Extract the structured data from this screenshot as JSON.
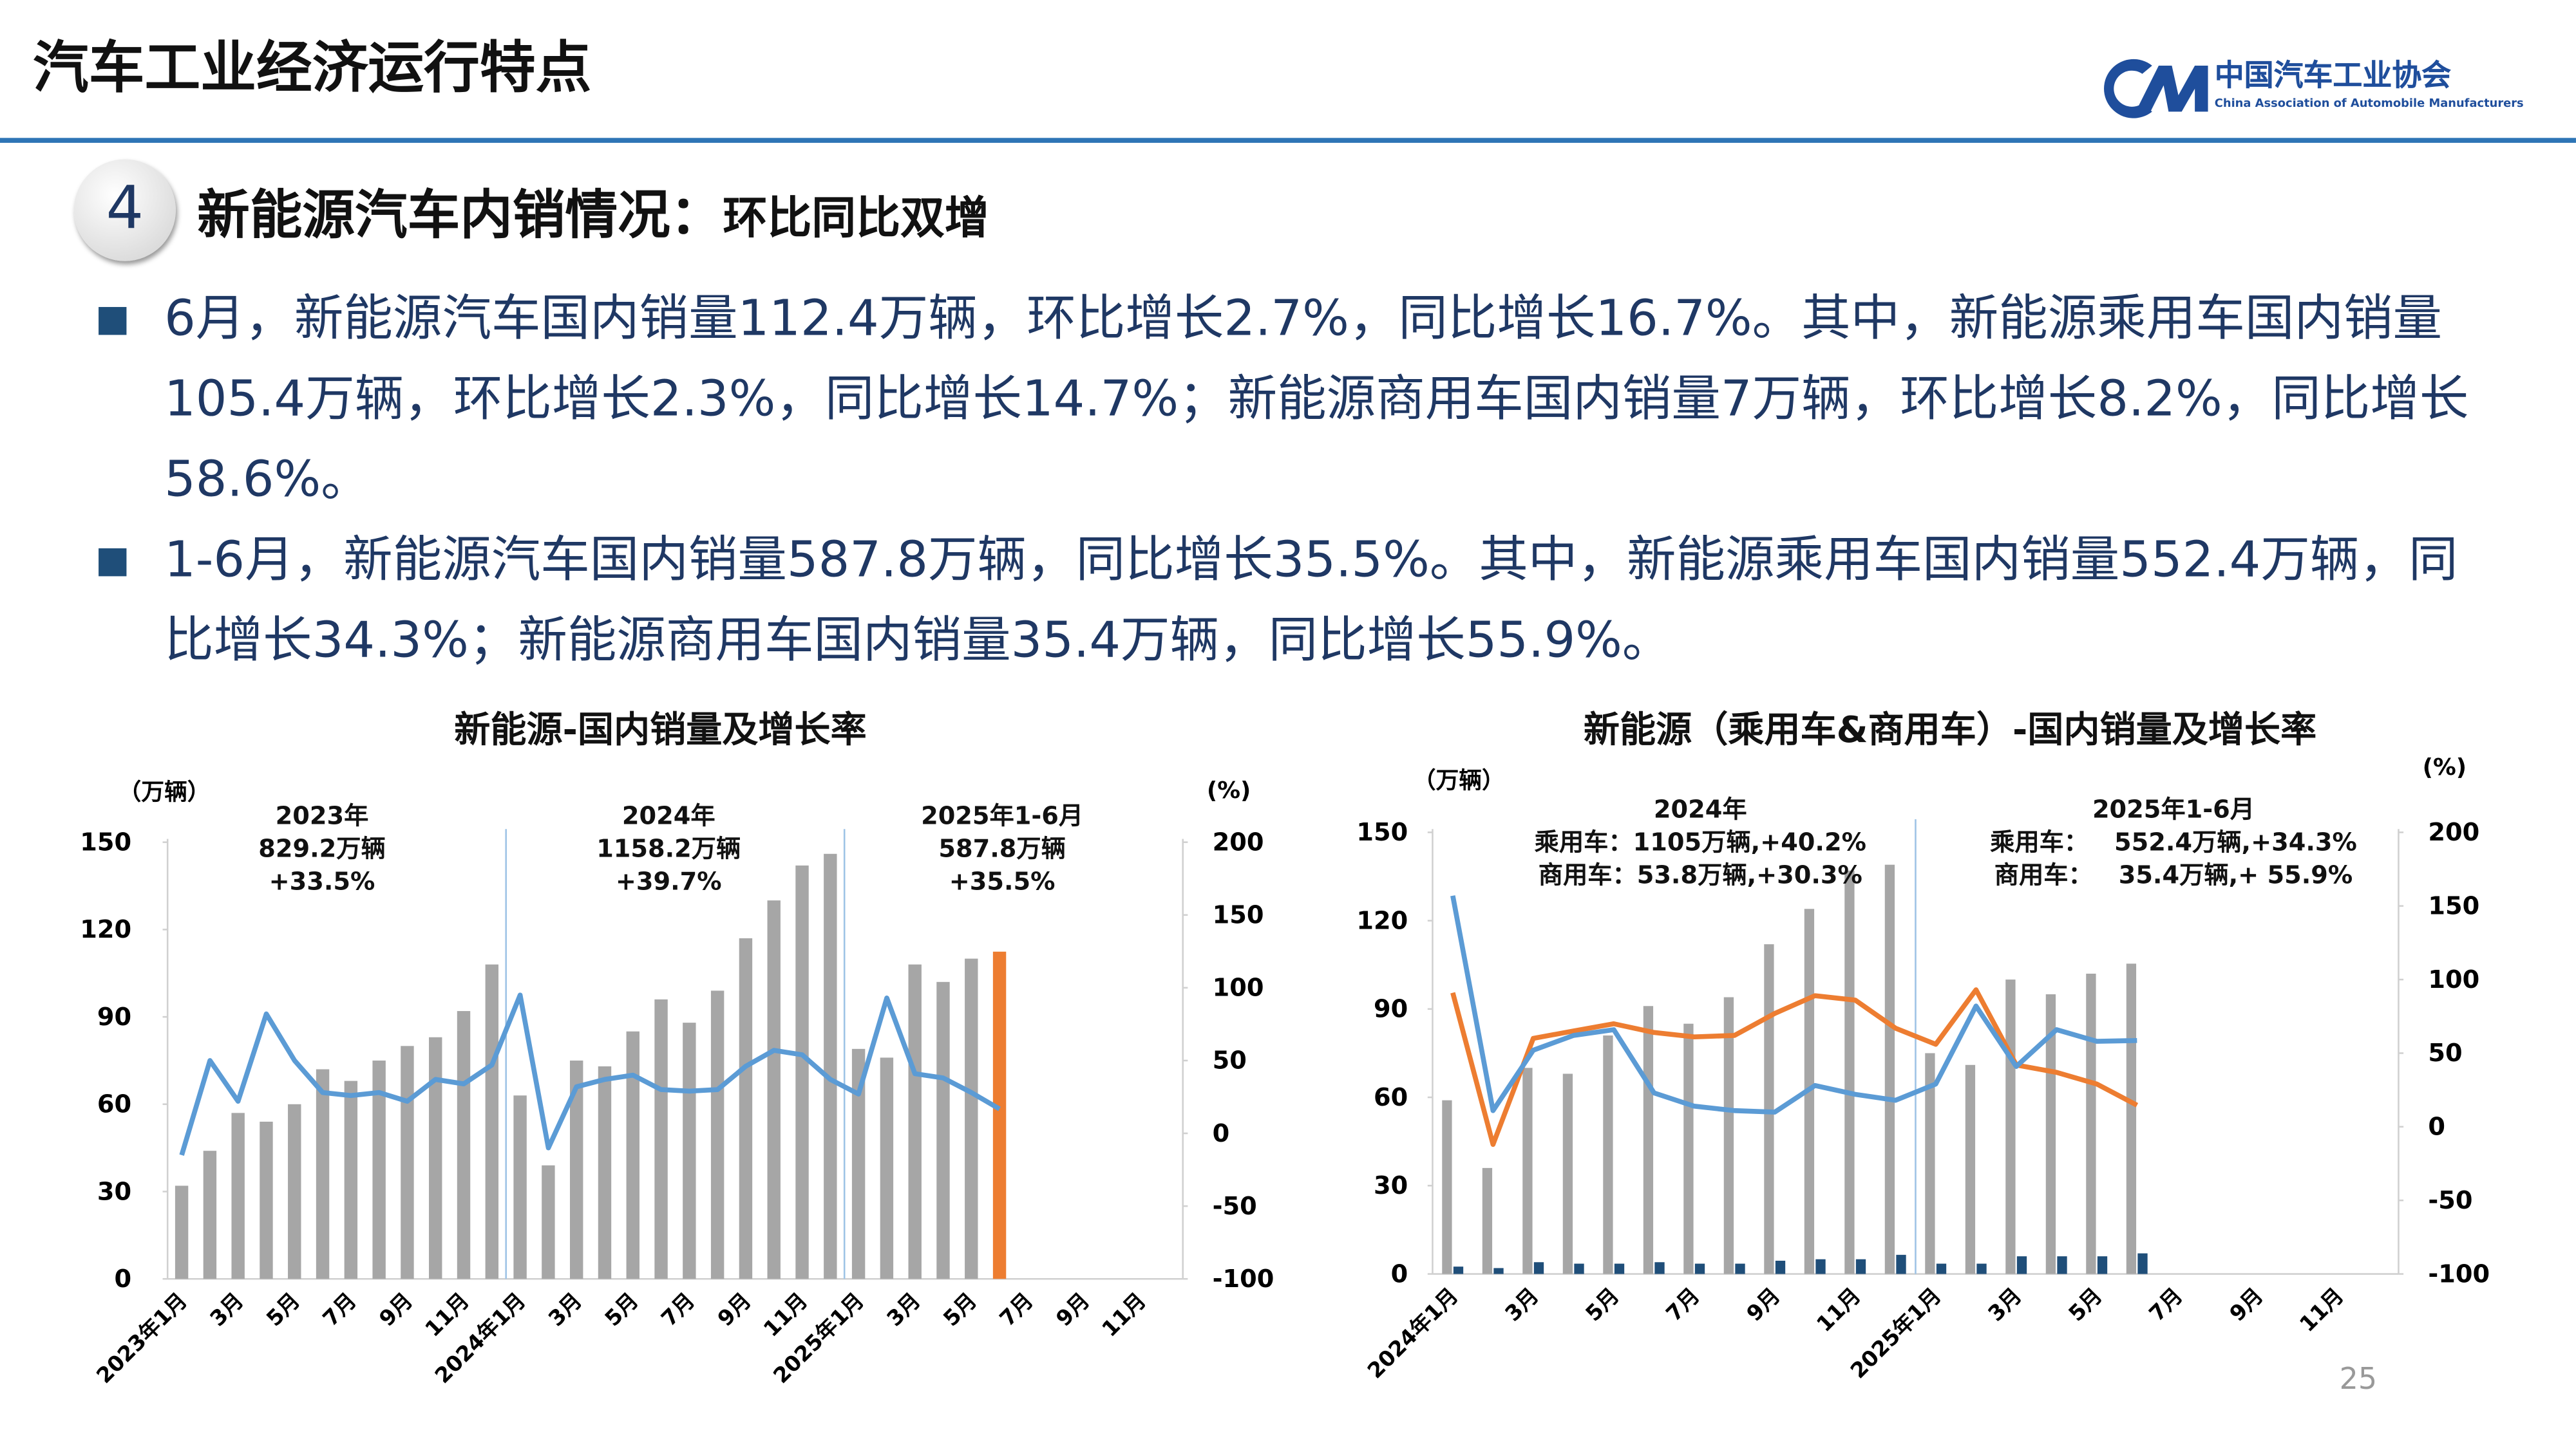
{
  "header": {
    "title": "汽车工业经济运行特点",
    "org_name": "中国汽车工业协会",
    "org_name_en": "China Association of Automobile Manufacturers"
  },
  "section": {
    "number": "4",
    "heading": "新能源汽车内销情况：",
    "subheading": "环比同比双增"
  },
  "bullets": [
    "6月，新能源汽车国内销量112.4万辆，环比增长2.7%，同比增长16.7%。其中，新能源乘用车国内销量105.4万辆，环比增长2.3%，同比增长14.7%；新能源商用车国内销量7万辆，环比增长8.2%，同比增长58.6%。",
    "1-6月，新能源汽车国内销量587.8万辆，同比增长35.5%。其中，新能源乘用车国内销量552.4万辆，同比增长34.3%；新能源商用车国内销量35.4万辆，同比增长55.9%。"
  ],
  "page_number": "25",
  "chart_data": [
    {
      "type": "combo",
      "title": "新能源-国内销量及增长率",
      "y_unit": "（万辆）",
      "y2_unit": "(%)",
      "annotations": [
        [
          "2023年",
          "829.2万辆",
          "+33.5%"
        ],
        [
          "2024年",
          "1158.2万辆",
          "+39.7%"
        ],
        [
          "2025年1-6月",
          "587.8万辆",
          "+35.5%"
        ]
      ],
      "categories": [
        "2023年1月",
        null,
        "3月",
        null,
        "5月",
        null,
        "7月",
        null,
        "9月",
        null,
        "11月",
        null,
        "2024年1月",
        null,
        "3月",
        null,
        "5月",
        null,
        "7月",
        null,
        "9月",
        null,
        "11月",
        null,
        "2025年1月",
        null,
        "3月",
        null,
        "5月",
        null,
        "7月",
        null,
        "9月",
        null,
        "11月",
        null
      ],
      "series": [
        {
          "type": "bar",
          "color": "#a6a6a6",
          "colors": [
            "#a6a6a6",
            "#a6a6a6",
            "#a6a6a6",
            "#a6a6a6",
            "#a6a6a6",
            "#a6a6a6",
            "#a6a6a6",
            "#a6a6a6",
            "#a6a6a6",
            "#a6a6a6",
            "#a6a6a6",
            "#a6a6a6",
            "#a6a6a6",
            "#a6a6a6",
            "#a6a6a6",
            "#a6a6a6",
            "#a6a6a6",
            "#a6a6a6",
            "#a6a6a6",
            "#a6a6a6",
            "#a6a6a6",
            "#a6a6a6",
            "#a6a6a6",
            "#a6a6a6",
            "#a6a6a6",
            "#a6a6a6",
            "#a6a6a6",
            "#a6a6a6",
            "#a6a6a6",
            "#ed7d31",
            null,
            null,
            null,
            null,
            null,
            null
          ],
          "values": [
            32,
            44,
            57,
            54,
            60,
            72,
            68,
            75,
            80,
            83,
            92,
            108,
            63,
            39,
            75,
            73,
            85,
            96,
            88,
            99,
            117,
            130,
            142,
            146,
            79,
            76,
            108,
            102,
            110,
            112.4,
            null,
            null,
            null,
            null,
            null,
            null
          ]
        },
        {
          "type": "line",
          "axis": "y2",
          "color": "#5b9bd5",
          "values": [
            -15,
            50,
            22,
            82,
            50,
            28,
            26,
            28,
            22,
            37,
            34,
            47,
            95,
            -10,
            32,
            37,
            40,
            30,
            29,
            30,
            46,
            57,
            54,
            37,
            27,
            93,
            41,
            38,
            28,
            16.7,
            null,
            null,
            null,
            null,
            null,
            null
          ]
        }
      ],
      "ylim": [
        0,
        150
      ],
      "yticks": [
        0,
        30,
        60,
        90,
        120,
        150
      ],
      "y2lim": [
        -100,
        200
      ],
      "y2ticks": [
        -100,
        -50,
        0,
        50,
        100,
        150,
        200
      ]
    },
    {
      "type": "combo",
      "title": "新能源（乘用车&商用车）-国内销量及增长率",
      "y_unit": "（万辆）",
      "y2_unit": "(%)",
      "annotations": [
        [
          "2024年",
          "乘用车：1105万辆,+40.2%",
          "商用车：53.8万辆,+30.3%"
        ],
        [
          "2025年1-6月",
          "乘用车：   552.4万辆,+34.3%",
          "商用车：   35.4万辆,+ 55.9%"
        ]
      ],
      "categories": [
        "2024年1月",
        null,
        "3月",
        null,
        "5月",
        null,
        "7月",
        null,
        "9月",
        null,
        "11月",
        null,
        "2025年1月",
        null,
        "3月",
        null,
        "5月",
        null,
        "7月",
        null,
        "9月",
        null,
        "11月",
        null
      ],
      "series": [
        {
          "type": "bar",
          "color": "#a6a6a6",
          "values": [
            59,
            36,
            70,
            68,
            81,
            91,
            85,
            94,
            112,
            124,
            137,
            139,
            75,
            71,
            100,
            95,
            102,
            105.4,
            null,
            null,
            null,
            null,
            null,
            null
          ]
        },
        {
          "type": "bar",
          "color": "#1f4e79",
          "values": [
            2.5,
            2,
            4,
            3.5,
            3.5,
            4,
            3.5,
            3.5,
            4.5,
            5,
            5,
            6.5,
            3.5,
            3.5,
            6,
            6,
            6,
            7,
            null,
            null,
            null,
            null,
            null,
            null
          ]
        },
        {
          "type": "line",
          "axis": "y2",
          "color": "#ed7d31",
          "values": [
            91,
            -12,
            60,
            65,
            70,
            64,
            61,
            62,
            77,
            89,
            86,
            67,
            56,
            93,
            42,
            37,
            29,
            14.7,
            null,
            null,
            null,
            null,
            null,
            null
          ]
        },
        {
          "type": "line",
          "axis": "y2",
          "color": "#5b9bd5",
          "values": [
            157,
            11,
            52,
            62,
            66,
            23,
            14,
            11,
            10,
            28,
            22,
            18,
            29,
            82,
            41,
            66,
            58,
            58.6,
            null,
            null,
            null,
            null,
            null,
            null
          ]
        }
      ],
      "ylim": [
        0,
        150
      ],
      "yticks": [
        0,
        30,
        60,
        90,
        120,
        150
      ],
      "y2lim": [
        -100,
        200
      ],
      "y2ticks": [
        -100,
        -50,
        0,
        50,
        100,
        150,
        200
      ]
    }
  ]
}
